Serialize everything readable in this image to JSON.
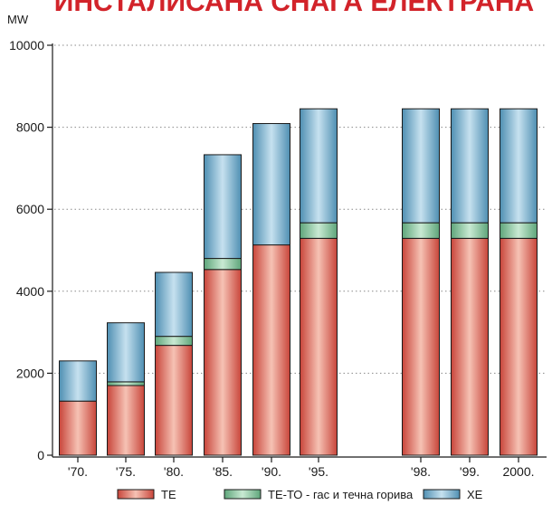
{
  "chart_data": {
    "type": "bar",
    "stacked": true,
    "title": "ИНСТАЛИСАНА СНАГА ЕЛЕКТРАНА",
    "ylabel": "MW",
    "ylim": [
      0,
      10000
    ],
    "yticks": [
      "10000",
      "8000",
      "6000",
      "4000",
      "2000",
      "0"
    ],
    "categories": [
      "'70.",
      "'75.",
      "'80.",
      "'85.",
      "'90.",
      "'95.",
      "'98.",
      "'99.",
      "2000."
    ],
    "series": [
      {
        "name": "ТЕ",
        "color": "#d9604f",
        "values": [
          1320,
          1700,
          2680,
          4530,
          5130,
          5290,
          5290,
          5290,
          5290
        ]
      },
      {
        "name": "ТЕ-ТО - гас и течна горива",
        "color": "#7cbf93",
        "values": [
          0,
          90,
          220,
          270,
          0,
          380,
          380,
          380,
          380
        ]
      },
      {
        "name": "ХЕ",
        "color": "#6fa9c8",
        "values": [
          980,
          1440,
          1560,
          2530,
          2960,
          2780,
          2780,
          2780,
          2780
        ]
      }
    ],
    "legend_position": "bottom"
  }
}
